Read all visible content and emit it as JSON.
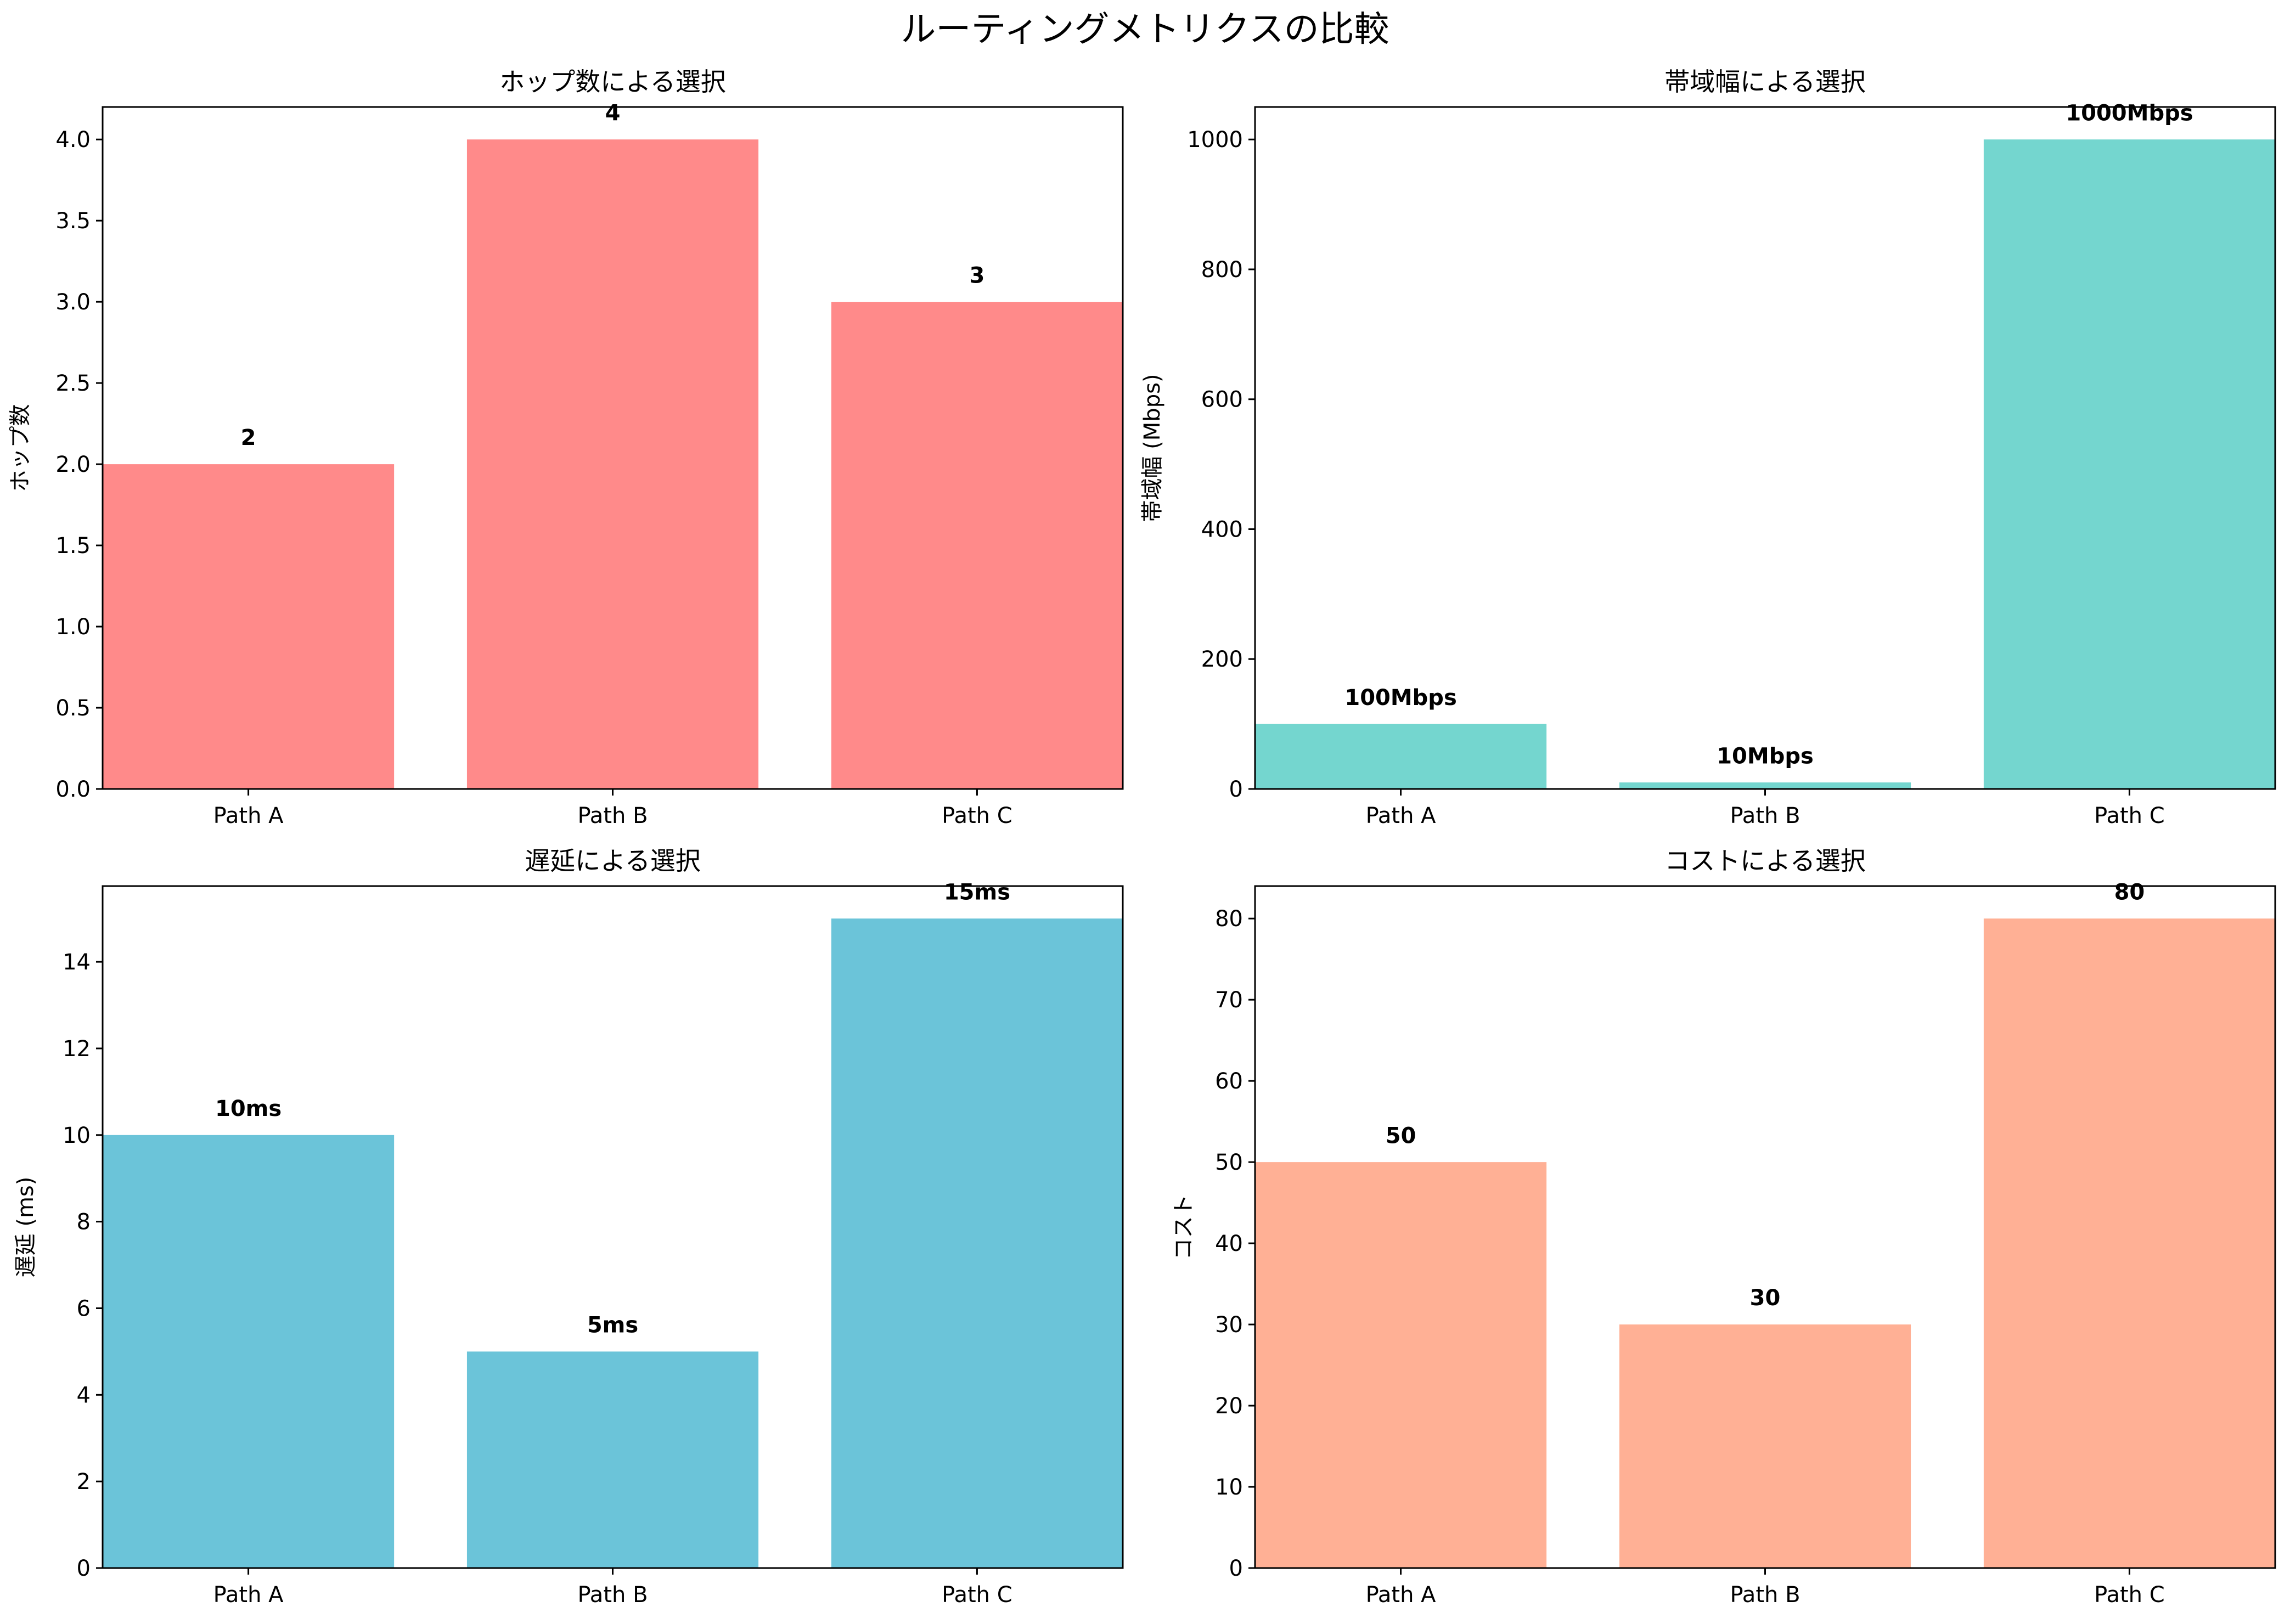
{
  "title": "ルーティングメトリクスの比較",
  "colors": {
    "hop": "#ff8a8a",
    "bandwidth": "#74d6cf",
    "latency": "#6bc4d9",
    "cost": "#ffb095"
  },
  "chart_data": [
    {
      "type": "bar",
      "title": "ホップ数による選択",
      "xlabel": "",
      "ylabel": "ホップ数",
      "categories": [
        "Path A",
        "Path B",
        "Path C"
      ],
      "values": [
        2,
        4,
        3
      ],
      "data_labels": [
        "2",
        "4",
        "3"
      ],
      "ylim": [
        0,
        4.2
      ],
      "yticks": [
        0.0,
        0.5,
        1.0,
        1.5,
        2.0,
        2.5,
        3.0,
        3.5,
        4.0
      ],
      "ytick_labels": [
        "0.0",
        "0.5",
        "1.0",
        "1.5",
        "2.0",
        "2.5",
        "3.0",
        "3.5",
        "4.0"
      ],
      "color": "#ff8a8a",
      "grid": false
    },
    {
      "type": "bar",
      "title": "帯域幅による選択",
      "xlabel": "",
      "ylabel": "帯域幅 (Mbps)",
      "categories": [
        "Path A",
        "Path B",
        "Path C"
      ],
      "values": [
        100,
        10,
        1000
      ],
      "data_labels": [
        "100Mbps",
        "10Mbps",
        "1000Mbps"
      ],
      "ylim": [
        0,
        1050
      ],
      "yticks": [
        0,
        200,
        400,
        600,
        800,
        1000
      ],
      "ytick_labels": [
        "0",
        "200",
        "400",
        "600",
        "800",
        "1000"
      ],
      "color": "#74d6cf",
      "grid": false
    },
    {
      "type": "bar",
      "title": "遅延による選択",
      "xlabel": "",
      "ylabel": "遅延 (ms)",
      "categories": [
        "Path A",
        "Path B",
        "Path C"
      ],
      "values": [
        10,
        5,
        15
      ],
      "data_labels": [
        "10ms",
        "5ms",
        "15ms"
      ],
      "ylim": [
        0,
        15.75
      ],
      "yticks": [
        0,
        2,
        4,
        6,
        8,
        10,
        12,
        14
      ],
      "ytick_labels": [
        "0",
        "2",
        "4",
        "6",
        "8",
        "10",
        "12",
        "14"
      ],
      "color": "#6bc4d9",
      "grid": false
    },
    {
      "type": "bar",
      "title": "コストによる選択",
      "xlabel": "",
      "ylabel": "コスト",
      "categories": [
        "Path A",
        "Path B",
        "Path C"
      ],
      "values": [
        50,
        30,
        80
      ],
      "data_labels": [
        "50",
        "30",
        "80"
      ],
      "ylim": [
        0,
        84
      ],
      "yticks": [
        0,
        10,
        20,
        30,
        40,
        50,
        60,
        70,
        80
      ],
      "ytick_labels": [
        "0",
        "10",
        "20",
        "30",
        "40",
        "50",
        "60",
        "70",
        "80"
      ],
      "color": "#ffb095",
      "grid": false
    }
  ]
}
